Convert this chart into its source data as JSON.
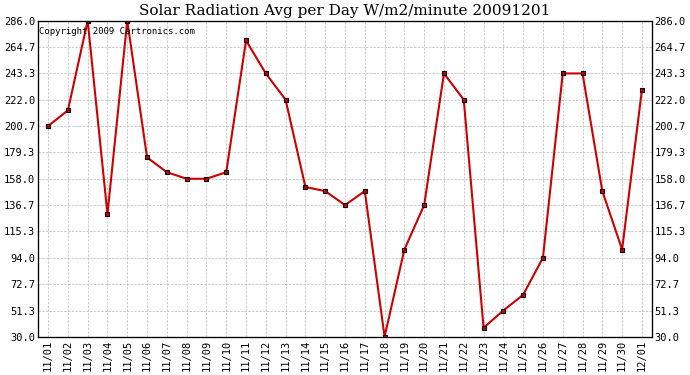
{
  "title": "Solar Radiation Avg per Day W/m2/minute 20091201",
  "copyright": "Copyright 2009 Cartronics.com",
  "x_labels": [
    "11/01",
    "11/02",
    "11/03",
    "11/04",
    "11/05",
    "11/06",
    "11/07",
    "11/08",
    "11/09",
    "11/10",
    "11/11",
    "11/12",
    "11/13",
    "11/14",
    "11/15",
    "11/16",
    "11/17",
    "11/18",
    "11/19",
    "11/20",
    "11/21",
    "11/22",
    "11/23",
    "11/24",
    "11/25",
    "11/26",
    "11/27",
    "11/28",
    "11/29",
    "11/30",
    "12/01"
  ],
  "y_values": [
    200.7,
    213.4,
    286.0,
    129.3,
    286.0,
    175.3,
    163.3,
    158.0,
    158.0,
    163.3,
    270.0,
    243.3,
    222.0,
    151.3,
    148.0,
    136.7,
    148.0,
    30.0,
    100.7,
    136.7,
    243.3,
    222.0,
    37.3,
    51.3,
    64.0,
    94.0,
    243.3,
    243.3,
    148.0,
    100.7,
    230.0
  ],
  "y_ticks": [
    30.0,
    51.3,
    72.7,
    94.0,
    115.3,
    136.7,
    158.0,
    179.3,
    200.7,
    222.0,
    243.3,
    264.7,
    286.0
  ],
  "y_min": 30.0,
  "y_max": 286.0,
  "line_color": "#cc0000",
  "marker_color": "#000000",
  "marker_fill": "#cc0000",
  "marker_size": 3.5,
  "background_color": "#ffffff",
  "grid_color": "#bbbbbb",
  "title_fontsize": 11,
  "tick_fontsize": 7.5,
  "copyright_fontsize": 6.5
}
